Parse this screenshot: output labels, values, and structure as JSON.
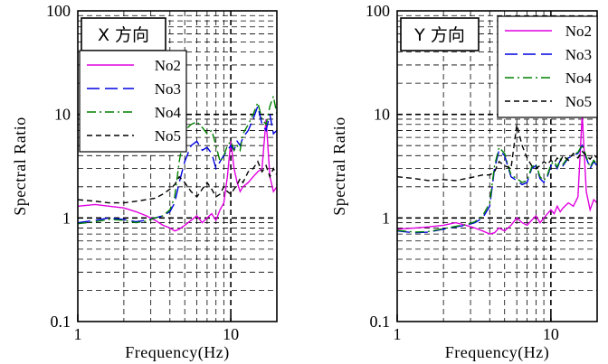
{
  "chart_data": [
    {
      "type": "line",
      "panel_title": "X 方向",
      "xlabel": "Frequency(Hz)",
      "ylabel": "Spectral Ratio",
      "xscale": "log",
      "yscale": "log",
      "xlim": [
        1,
        20
      ],
      "ylim": [
        0.1,
        100
      ],
      "x_tick_labels": [
        "1",
        "10"
      ],
      "y_tick_labels": [
        "0.1",
        "1",
        "10",
        "100"
      ],
      "grid": true,
      "legend_position": "top-left",
      "series": [
        {
          "name": "No2",
          "color": "#e000e0",
          "dash": "solid",
          "x": [
            1,
            1.3,
            1.6,
            2,
            2.4,
            2.8,
            3.2,
            3.6,
            4,
            4.3,
            4.6,
            5,
            5.5,
            6,
            6.5,
            7,
            7.5,
            8,
            8.5,
            9,
            9.5,
            10,
            10.5,
            11,
            11.5,
            12,
            13,
            14,
            15,
            16,
            17,
            18,
            19,
            20
          ],
          "y": [
            1.3,
            1.35,
            1.3,
            1.25,
            1.15,
            1.05,
            0.95,
            0.85,
            0.8,
            0.75,
            0.78,
            0.85,
            0.95,
            1.05,
            0.9,
            1.0,
            1.1,
            0.95,
            1.2,
            1.4,
            2.5,
            5.5,
            3.0,
            2.2,
            1.8,
            2.0,
            2.2,
            2.5,
            2.8,
            3.0,
            9.0,
            2.5,
            1.8,
            2.0
          ]
        },
        {
          "name": "No3",
          "color": "#0000e0",
          "dash": "long-dash",
          "x": [
            1,
            1.3,
            1.6,
            2,
            2.4,
            2.8,
            3.2,
            3.6,
            4,
            4.3,
            4.6,
            5,
            5.5,
            6,
            6.5,
            7,
            7.5,
            8,
            8.5,
            9,
            9.5,
            10,
            10.5,
            11,
            11.5,
            12,
            13,
            14,
            15,
            16,
            17,
            18,
            19,
            20
          ],
          "y": [
            0.9,
            0.95,
            1.0,
            0.97,
            0.92,
            0.95,
            1.0,
            1.05,
            1.15,
            1.4,
            2.2,
            3.5,
            5.0,
            5.5,
            4.5,
            4.8,
            4.2,
            3.0,
            3.5,
            4.0,
            4.5,
            5.0,
            4.5,
            5.5,
            5.0,
            6.0,
            7.0,
            9.0,
            12.0,
            8.0,
            7.0,
            10.0,
            6.5,
            7.0
          ]
        },
        {
          "name": "No4",
          "color": "#008000",
          "dash": "dash-dot",
          "x": [
            1,
            1.3,
            1.6,
            2,
            2.4,
            2.8,
            3.2,
            3.6,
            4,
            4.3,
            4.6,
            5,
            5.5,
            6,
            6.5,
            7,
            7.5,
            8,
            8.5,
            9,
            9.5,
            10,
            10.5,
            11,
            11.5,
            12,
            13,
            14,
            15,
            16,
            17,
            18,
            19,
            20
          ],
          "y": [
            0.88,
            0.92,
            0.97,
            0.95,
            0.9,
            0.93,
            1.0,
            1.05,
            1.2,
            1.6,
            3.5,
            7.0,
            8.0,
            8.5,
            7.5,
            6.5,
            7.0,
            5.0,
            3.5,
            4.0,
            5.0,
            5.5,
            4.5,
            5.0,
            4.5,
            6.5,
            8.0,
            10.0,
            13.0,
            9.0,
            8.0,
            12.0,
            15.0,
            10.0
          ]
        },
        {
          "name": "No5",
          "color": "#000000",
          "dash": "short-dash",
          "x": [
            1,
            1.3,
            1.6,
            2,
            2.4,
            2.8,
            3.2,
            3.6,
            4,
            4.3,
            4.6,
            5,
            5.5,
            6,
            6.5,
            7,
            7.5,
            8,
            8.5,
            9,
            9.5,
            10,
            10.5,
            11,
            11.5,
            12,
            13,
            14,
            15,
            16,
            17,
            18,
            19,
            20
          ],
          "y": [
            1.5,
            1.45,
            1.4,
            1.4,
            1.45,
            1.5,
            1.55,
            1.7,
            1.9,
            2.1,
            2.5,
            2.2,
            1.8,
            1.6,
            1.9,
            2.2,
            1.9,
            1.6,
            1.7,
            2.0,
            1.8,
            1.7,
            1.9,
            2.1,
            2.4,
            2.2,
            2.8,
            3.0,
            3.5,
            2.8,
            3.2,
            2.5,
            3.0,
            2.6
          ]
        }
      ]
    },
    {
      "type": "line",
      "panel_title": "Y 方向",
      "xlabel": "Frequency(Hz)",
      "ylabel": "Spectral Ratio",
      "xscale": "log",
      "yscale": "log",
      "xlim": [
        1,
        20
      ],
      "ylim": [
        0.1,
        100
      ],
      "x_tick_labels": [
        "1",
        "10"
      ],
      "y_tick_labels": [
        "0.1",
        "1",
        "10",
        "100"
      ],
      "grid": true,
      "legend_position": "top-right",
      "series": [
        {
          "name": "No2",
          "color": "#e000e0",
          "dash": "solid",
          "x": [
            1,
            1.3,
            1.6,
            2,
            2.4,
            2.8,
            3.2,
            3.6,
            4,
            4.3,
            4.6,
            5,
            5.5,
            6,
            6.5,
            7,
            7.5,
            8,
            8.5,
            9,
            9.5,
            10,
            10.5,
            11,
            11.5,
            12,
            13,
            14,
            15,
            16,
            17,
            18,
            19,
            20
          ],
          "y": [
            0.78,
            0.8,
            0.82,
            0.85,
            0.9,
            0.85,
            0.8,
            0.75,
            0.7,
            0.72,
            0.8,
            0.75,
            0.85,
            1.0,
            0.9,
            0.85,
            0.95,
            1.05,
            0.9,
            1.0,
            1.1,
            1.2,
            1.1,
            1.3,
            1.15,
            1.25,
            1.4,
            1.3,
            1.6,
            10.0,
            1.8,
            1.2,
            1.5,
            1.4
          ]
        },
        {
          "name": "No3",
          "color": "#0000e0",
          "dash": "long-dash",
          "x": [
            1,
            1.3,
            1.6,
            2,
            2.4,
            2.8,
            3.2,
            3.6,
            4,
            4.3,
            4.6,
            5,
            5.5,
            6,
            6.5,
            7,
            7.5,
            8,
            8.5,
            9,
            9.5,
            10,
            10.5,
            11,
            11.5,
            12,
            13,
            14,
            15,
            16,
            17,
            18,
            19,
            20
          ],
          "y": [
            0.75,
            0.72,
            0.73,
            0.78,
            0.82,
            0.85,
            0.9,
            1.0,
            1.3,
            3.0,
            4.5,
            4.0,
            2.5,
            2.3,
            2.1,
            2.2,
            3.0,
            3.2,
            2.4,
            2.2,
            2.5,
            3.2,
            3.4,
            3.0,
            3.6,
            3.2,
            3.8,
            4.0,
            4.2,
            5.0,
            3.8,
            3.0,
            3.5,
            3.2
          ]
        },
        {
          "name": "No4",
          "color": "#008000",
          "dash": "dash-dot",
          "x": [
            1,
            1.3,
            1.6,
            2,
            2.4,
            2.8,
            3.2,
            3.6,
            4,
            4.3,
            4.6,
            5,
            5.5,
            6,
            6.5,
            7,
            7.5,
            8,
            8.5,
            9,
            9.5,
            10,
            10.5,
            11,
            11.5,
            12,
            13,
            14,
            15,
            16,
            17,
            18,
            19,
            20
          ],
          "y": [
            0.76,
            0.73,
            0.74,
            0.79,
            0.83,
            0.86,
            0.92,
            1.05,
            1.4,
            3.2,
            4.8,
            4.2,
            2.6,
            2.4,
            2.2,
            2.3,
            3.1,
            3.3,
            2.5,
            2.3,
            2.6,
            3.3,
            3.5,
            3.1,
            3.7,
            3.3,
            3.9,
            4.1,
            4.3,
            5.1,
            3.9,
            3.1,
            3.6,
            3.3
          ]
        },
        {
          "name": "No5",
          "color": "#000000",
          "dash": "short-dash",
          "x": [
            1,
            1.3,
            1.6,
            2,
            2.4,
            2.8,
            3.2,
            3.6,
            4,
            4.3,
            4.6,
            5,
            5.5,
            6,
            6.5,
            7,
            7.5,
            8,
            8.5,
            9,
            9.5,
            10,
            10.5,
            11,
            11.5,
            12,
            13,
            14,
            15,
            16,
            17,
            18,
            19,
            20
          ],
          "y": [
            2.5,
            2.4,
            2.3,
            2.35,
            2.3,
            2.4,
            2.5,
            2.6,
            2.6,
            2.8,
            3.5,
            3.2,
            3.0,
            8.0,
            5.0,
            3.8,
            3.2,
            3.0,
            3.2,
            3.5,
            3.3,
            3.6,
            3.4,
            3.8,
            3.5,
            4.0,
            3.6,
            4.2,
            3.8,
            4.4,
            4.0,
            3.7,
            4.1,
            3.8
          ]
        }
      ]
    }
  ]
}
